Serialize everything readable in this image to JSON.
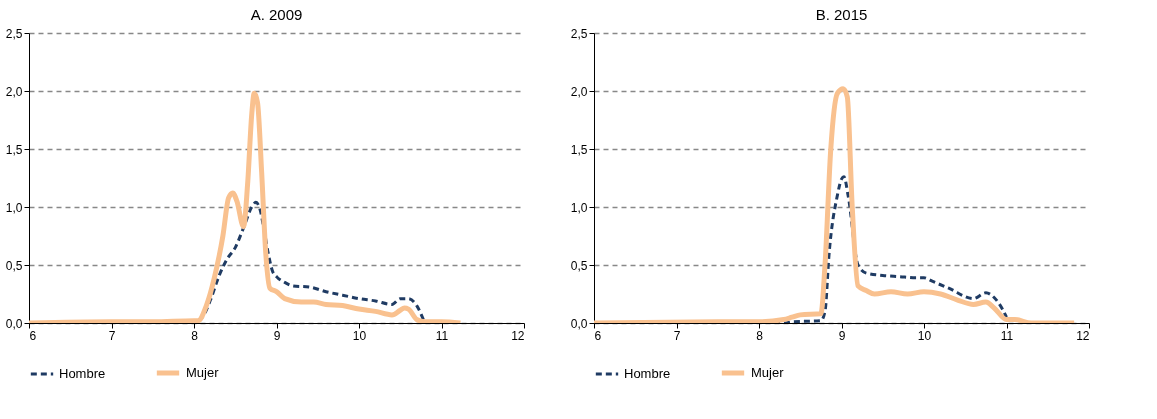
{
  "chart_data": [
    {
      "type": "line",
      "title": "A. 2009",
      "xlim": [
        6,
        12
      ],
      "xticks": [
        6,
        7,
        8,
        9,
        10,
        11,
        12
      ],
      "ylim": [
        0,
        2.5
      ],
      "yticks": [
        {
          "value": 0,
          "label": "0,0"
        },
        {
          "value": 0.5,
          "label": "0,5"
        },
        {
          "value": 1,
          "label": "1,0"
        },
        {
          "value": 1.5,
          "label": "1,5"
        },
        {
          "value": 2,
          "label": "2,0"
        },
        {
          "value": 2.5,
          "label": "2,5"
        }
      ],
      "grid": "y",
      "legend": "bottom",
      "marker": "none",
      "series": [
        {
          "name": "Hombre",
          "color": "#1f3b63",
          "line_style": "dashed",
          "x": [
            6,
            8,
            8.1,
            8.2,
            8.3,
            8.4,
            8.5,
            8.6,
            8.7,
            8.75,
            8.8,
            8.85,
            8.9,
            8.95,
            9.0,
            9.1,
            9.2,
            9.4,
            9.6,
            9.8,
            10.0,
            10.2,
            10.4,
            10.5,
            10.6,
            10.7,
            10.78
          ],
          "values": [
            0,
            0.01,
            0.05,
            0.2,
            0.4,
            0.55,
            0.65,
            0.82,
            1.0,
            1.04,
            0.98,
            0.8,
            0.6,
            0.45,
            0.4,
            0.35,
            0.32,
            0.31,
            0.27,
            0.24,
            0.21,
            0.19,
            0.16,
            0.21,
            0.21,
            0.15,
            0.03
          ]
        },
        {
          "name": "Mujer",
          "color": "#f9c18f",
          "line_style": "solid",
          "x": [
            6,
            7,
            7.5,
            8.0,
            8.05,
            8.15,
            8.25,
            8.35,
            8.42,
            8.47,
            8.52,
            8.6,
            8.65,
            8.7,
            8.73,
            8.77,
            8.82,
            8.87,
            8.92,
            9.0,
            9.1,
            9.3,
            9.45,
            9.6,
            9.8,
            10.0,
            10.2,
            10.4,
            10.5,
            10.55,
            10.6,
            10.7,
            10.8,
            10.9,
            11.0,
            11.23
          ],
          "values": [
            0,
            0.01,
            0.01,
            0.02,
            0.02,
            0.15,
            0.4,
            0.75,
            1.08,
            1.12,
            1.05,
            0.83,
            1.2,
            1.8,
            1.98,
            1.9,
            1.3,
            0.6,
            0.3,
            0.27,
            0.21,
            0.18,
            0.18,
            0.16,
            0.15,
            0.12,
            0.1,
            0.07,
            0.11,
            0.13,
            0.12,
            0.03,
            0.01,
            0.01,
            0.01,
            0
          ]
        }
      ]
    },
    {
      "type": "line",
      "title": "B. 2015",
      "xlim": [
        6,
        12
      ],
      "xticks": [
        6,
        7,
        8,
        9,
        10,
        11,
        12
      ],
      "ylim": [
        0,
        2.5
      ],
      "yticks": [
        {
          "value": 0,
          "label": "0,0"
        },
        {
          "value": 0.5,
          "label": "0,5"
        },
        {
          "value": 1,
          "label": "1,0"
        },
        {
          "value": 1.5,
          "label": "1,5"
        },
        {
          "value": 2,
          "label": "2,0"
        },
        {
          "value": 2.5,
          "label": "2,5"
        }
      ],
      "grid": "y",
      "legend": "bottom",
      "marker": "none",
      "series": [
        {
          "name": "Hombre",
          "color": "#1f3b63",
          "line_style": "dashed",
          "x": [
            6,
            8.3,
            8.4,
            8.75,
            8.8,
            8.85,
            8.95,
            9.0,
            9.03,
            9.08,
            9.2,
            9.3,
            9.5,
            9.7,
            9.9,
            10.0,
            10.1,
            10.3,
            10.6,
            10.75,
            10.85,
            10.95,
            11.0
          ],
          "values": [
            0,
            0,
            0.01,
            0.02,
            0.1,
            0.6,
            1.1,
            1.24,
            1.26,
            1.1,
            0.5,
            0.43,
            0.41,
            0.4,
            0.39,
            0.39,
            0.36,
            0.3,
            0.21,
            0.26,
            0.22,
            0.12,
            0.05
          ]
        },
        {
          "name": "Mujer",
          "color": "#f9c18f",
          "line_style": "solid",
          "x": [
            6,
            7.5,
            8,
            8.3,
            8.4,
            8.5,
            8.75,
            8.8,
            8.87,
            8.95,
            9.02,
            9.07,
            9.13,
            9.2,
            9.3,
            9.4,
            9.6,
            9.8,
            10.0,
            10.2,
            10.4,
            10.6,
            10.75,
            10.85,
            11.0,
            11.1,
            11.3,
            11.82
          ],
          "values": [
            0,
            0.01,
            0.01,
            0.03,
            0.05,
            0.07,
            0.08,
            0.5,
            1.5,
            1.98,
            2.02,
            1.95,
            1.0,
            0.32,
            0.28,
            0.25,
            0.27,
            0.25,
            0.27,
            0.25,
            0.2,
            0.16,
            0.18,
            0.13,
            0.03,
            0.03,
            0,
            0
          ]
        }
      ]
    }
  ]
}
